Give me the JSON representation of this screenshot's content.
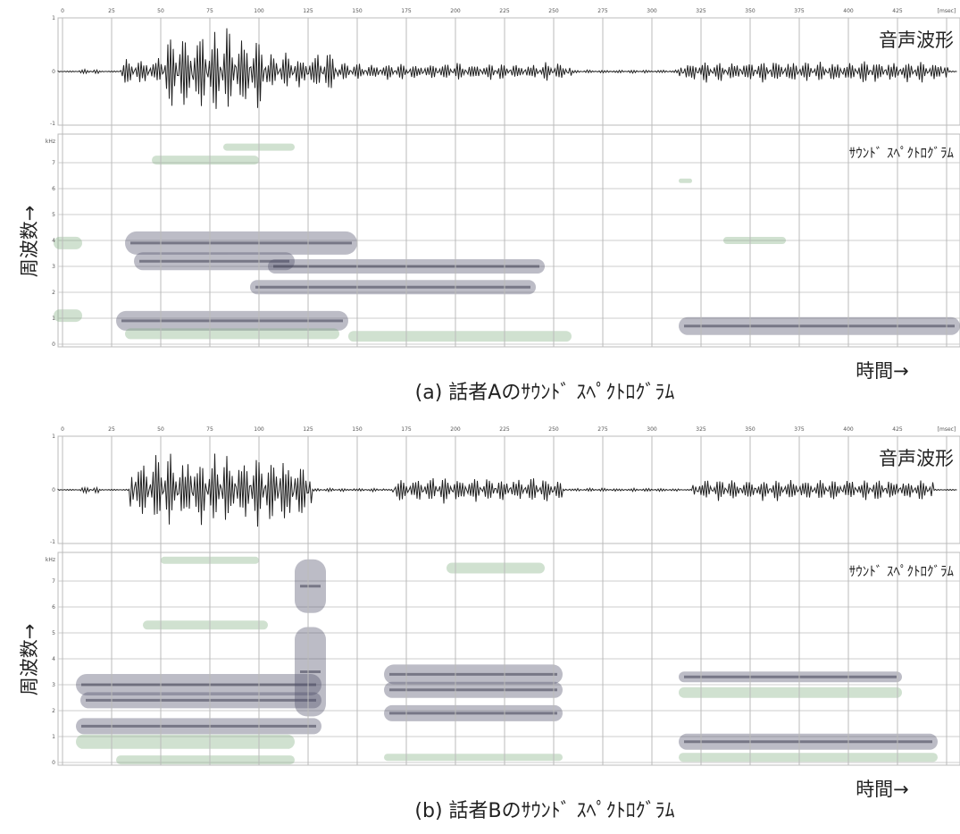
{
  "panels": [
    {
      "time_ticks": [
        "0",
        "25",
        "50",
        "75",
        "100",
        "125",
        "150",
        "175",
        "200",
        "225",
        "250",
        "275",
        "300",
        "325",
        "350",
        "375",
        "400",
        "425",
        "[msec]"
      ],
      "waveform": {
        "label": "音声波形",
        "yticks": [
          "1",
          "0",
          "-1"
        ]
      },
      "spectrogram": {
        "label": "ｻｳﾝﾄﾞ ｽﾍﾟｸﾄﾛｸﾞﾗﾑ",
        "yticks": [
          "kHz",
          "7",
          "6",
          "5",
          "4",
          "3",
          "2",
          "1",
          "0"
        ]
      },
      "y_axis_label": "周波数→",
      "x_axis_label": "時間→",
      "caption": "(a) 話者Aのｻｳﾝﾄﾞ ｽﾍﾟｸﾄﾛｸﾞﾗﾑ"
    },
    {
      "time_ticks": [
        "0",
        "25",
        "50",
        "75",
        "100",
        "125",
        "150",
        "175",
        "200",
        "225",
        "250",
        "275",
        "300",
        "325",
        "350",
        "375",
        "400",
        "425",
        "[msec]"
      ],
      "waveform": {
        "label": "音声波形",
        "yticks": [
          "1",
          "0",
          "-1"
        ]
      },
      "spectrogram": {
        "label": "ｻｳﾝﾄﾞ ｽﾍﾟｸﾄﾛｸﾞﾗﾑ",
        "yticks": [
          "kHz",
          "7",
          "6",
          "5",
          "4",
          "3",
          "2",
          "1",
          "0"
        ]
      },
      "y_axis_label": "周波数→",
      "x_axis_label": "時間→",
      "caption": "(b) 話者Bのｻｳﾝﾄﾞ ｽﾍﾟｸﾄﾛｸﾞﾗﾑ"
    }
  ]
}
